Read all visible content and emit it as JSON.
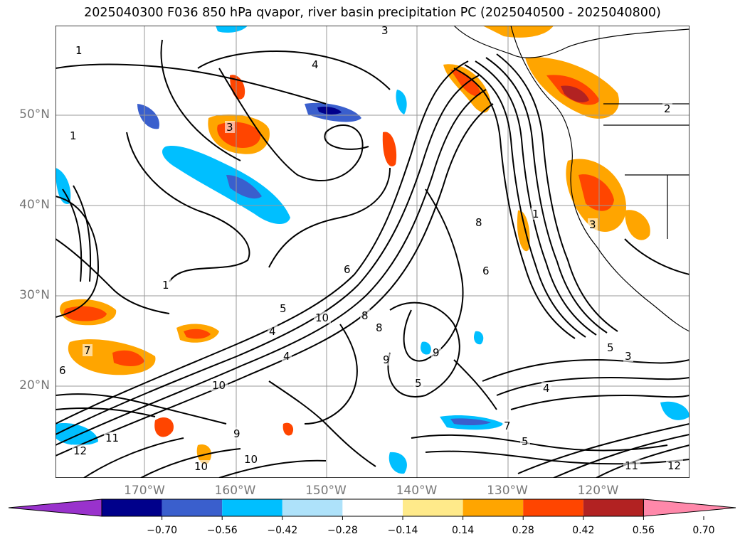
{
  "title": "2025040300 F036 850 hPa qvapor, river basin precipitation PC (2025040500 - 2025040800)",
  "map": {
    "lat_labels": [
      {
        "label": "50°N",
        "lat": 50
      },
      {
        "label": "40°N",
        "lat": 40
      },
      {
        "label": "30°N",
        "lat": 30
      },
      {
        "label": "20°N",
        "lat": 20
      }
    ],
    "lon_labels": [
      {
        "label": "170°W",
        "lon": -170
      },
      {
        "label": "160°W",
        "lon": -160
      },
      {
        "label": "150°W",
        "lon": -150
      },
      {
        "label": "140°W",
        "lon": -140
      },
      {
        "label": "130°W",
        "lon": -130
      },
      {
        "label": "120°W",
        "lon": -120
      }
    ],
    "contour_labels": [
      "1",
      "1",
      "1",
      "1",
      "2",
      "3",
      "3",
      "3",
      "3",
      "4",
      "4",
      "4",
      "4",
      "5",
      "5",
      "5",
      "5",
      "6",
      "6",
      "6",
      "7",
      "7",
      "8",
      "8",
      "8",
      "9",
      "9",
      "9",
      "10",
      "10",
      "10",
      "10",
      "11",
      "11",
      "12",
      "12"
    ]
  },
  "colorbar": {
    "colors": [
      "#9932cc",
      "#00008b",
      "#3a5fcd",
      "#00bfff",
      "#aee2fa",
      "#ffffff",
      "#ffea8a",
      "#ffa500",
      "#ff4500",
      "#b22222",
      "#ff88aa"
    ],
    "tick_labels": [
      "−0.70",
      "−0.56",
      "−0.42",
      "−0.28",
      "−0.14",
      "0.14",
      "0.28",
      "0.42",
      "0.56",
      "0.70"
    ]
  }
}
